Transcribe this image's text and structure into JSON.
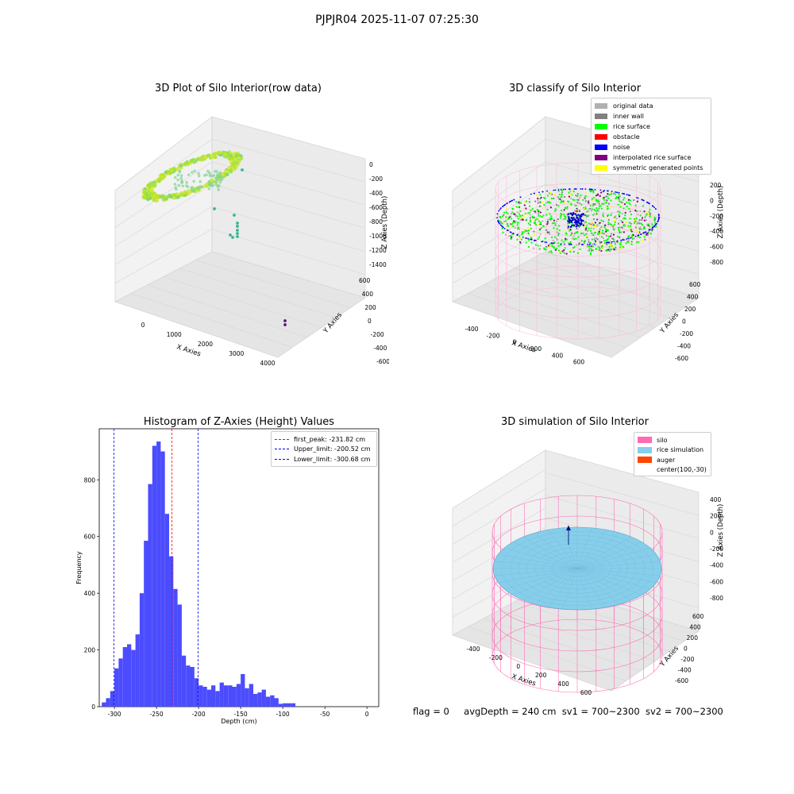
{
  "figure_title": "PJPJR04 2025-11-07 07:25:30",
  "status": {
    "flag": "flag = 0",
    "avg_depth": "avgDepth = 240 cm",
    "sv1": "sv1 = 700~2300",
    "sv2": "sv2 = 700~2300"
  },
  "colors": {
    "histogram_bar": "#4c4cff",
    "first_peak": "#ff0000",
    "limit_lines": "#0000ff",
    "silo": "#ff69b4",
    "rice": "#87ceeb",
    "auger": "#ff4500",
    "rice_surface": "#00ff00",
    "noise": "#0000ff",
    "symmetric": "#ffff00",
    "interpolated": "#800080",
    "inner_wall": "#808080",
    "original": "#b0b0b0"
  },
  "chart_data": [
    {
      "type": "scatter",
      "title": "3D Plot of Silo Interior(row data)",
      "projection": "3d",
      "xlabel": "X Axies",
      "ylabel": "Y Axies",
      "zlabel": "Z Axies (Depth)",
      "x_ticks": [
        "0",
        "1000",
        "2000",
        "3000",
        "4000"
      ],
      "y_ticks": [
        "-600",
        "-400",
        "-200",
        "0",
        "200",
        "400",
        "600"
      ],
      "z_ticks": [
        "0",
        "-200",
        "-400",
        "-600",
        "-800",
        "-1000",
        "-1200",
        "-1400"
      ],
      "description_points": [
        {
          "x": -500,
          "y": 0,
          "z": -300,
          "group": "ring"
        },
        {
          "x": 2400,
          "y": -500,
          "z": -1400,
          "group": "outlier"
        }
      ]
    },
    {
      "type": "scatter",
      "title": "3D classify of Silo Interior",
      "projection": "3d",
      "xlabel": "X Axies",
      "ylabel": "Y Axies",
      "zlabel": "Z Axies (Depth)",
      "x_ticks": [
        "-400",
        "-200",
        "0",
        "200",
        "400",
        "600",
        "800"
      ],
      "y_ticks": [
        "-600",
        "-400",
        "-200",
        "0",
        "200",
        "400",
        "600"
      ],
      "z_ticks": [
        "200",
        "0",
        "-200",
        "-400",
        "-600",
        "-800"
      ],
      "legend": [
        {
          "label": "original data",
          "color": "#b0b0b0"
        },
        {
          "label": "inner wall",
          "color": "#808080"
        },
        {
          "label": "rice surface",
          "color": "#00ff00"
        },
        {
          "label": "obstacle",
          "color": "#ff0000"
        },
        {
          "label": "noise",
          "color": "#0000ff"
        },
        {
          "label": "interpolated rice surface",
          "color": "#800080"
        },
        {
          "label": "symmetric generated points",
          "color": "#ffff00"
        }
      ],
      "legend_position": "top-right"
    },
    {
      "type": "bar",
      "title": "Histogram of Z-Axies (Height) Values",
      "xlabel": "Depth (cm)",
      "ylabel": "Frequency",
      "xlim": [
        -318,
        14
      ],
      "ylim": [
        0,
        980
      ],
      "x_ticks": [
        -300,
        -250,
        -200,
        -150,
        -100,
        -50,
        0
      ],
      "y_ticks": [
        0,
        200,
        400,
        600,
        800
      ],
      "bin_width": 5,
      "bin_starts": [
        -315,
        -310,
        -305,
        -300,
        -295,
        -290,
        -285,
        -280,
        -275,
        -270,
        -265,
        -260,
        -255,
        -250,
        -245,
        -240,
        -235,
        -230,
        -225,
        -220,
        -215,
        -210,
        -205,
        -200,
        -195,
        -190,
        -185,
        -180,
        -175,
        -170,
        -165,
        -160,
        -155,
        -150,
        -145,
        -140,
        -135,
        -130,
        -125,
        -120,
        -115,
        -110,
        -105,
        -100,
        -95,
        -90,
        -85,
        -80,
        -75,
        -70,
        -65,
        -60,
        -55,
        -50,
        -45,
        -40,
        -35,
        -30,
        -25,
        -20
      ],
      "values": [
        15,
        30,
        55,
        135,
        170,
        210,
        220,
        200,
        255,
        400,
        585,
        785,
        920,
        935,
        900,
        680,
        530,
        415,
        360,
        180,
        145,
        140,
        100,
        75,
        70,
        60,
        75,
        55,
        85,
        75,
        75,
        70,
        80,
        115,
        65,
        80,
        45,
        50,
        60,
        35,
        40,
        30,
        10,
        12,
        12,
        12,
        0,
        0,
        0,
        0,
        0,
        0,
        0,
        0,
        0,
        0,
        0,
        0,
        0,
        0
      ],
      "lines": [
        {
          "label": "first_peak: -231.82 cm",
          "x": -231.82,
          "color": "#ff0000"
        },
        {
          "label": "Upper_limit: -200.52 cm",
          "x": -200.52,
          "color": "#0000ff"
        },
        {
          "label": "Lower_limit: -300.68 cm",
          "x": -300.68,
          "color": "#0000ff"
        }
      ],
      "legend_position": "top-right"
    },
    {
      "type": "surface",
      "title": "3D simulation of Silo Interior",
      "projection": "3d",
      "xlabel": "X Axies",
      "ylabel": "Y Axies",
      "zlabel": "Z Axies (Depth)",
      "x_ticks": [
        "-400",
        "-200",
        "0",
        "200",
        "400",
        "600"
      ],
      "y_ticks": [
        "-600",
        "-400",
        "-200",
        "0",
        "200",
        "400",
        "600"
      ],
      "z_ticks": [
        "400",
        "200",
        "0",
        "-200",
        "-400",
        "-600",
        "-800"
      ],
      "legend": [
        {
          "label": "silo",
          "color": "#ff69b4"
        },
        {
          "label": "rice simulation",
          "color": "#87ceeb"
        },
        {
          "label": "auger",
          "color": "#ff4500"
        },
        {
          "label": "center(100,-30)",
          "color": ""
        }
      ],
      "legend_position": "top-right"
    }
  ]
}
